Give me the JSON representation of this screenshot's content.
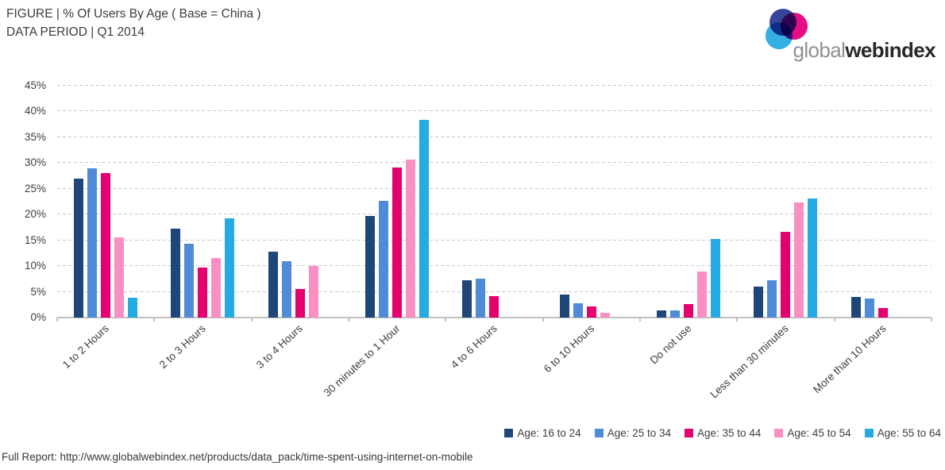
{
  "header": {
    "title_line1": "FIGURE | % Of Users By Age ( Base = China )",
    "title_line2": "DATA PERIOD | Q1 2014"
  },
  "logo": {
    "text_light": "global",
    "text_bold_1": "web",
    "text_bold_2": "index",
    "circle_top_color": "#2b3a94",
    "circle_right_color": "#e6007e",
    "circle_bottom_color": "#29abe2"
  },
  "chart_data": {
    "type": "bar",
    "title": "% Of Users By Age ( Base = China )",
    "data_period": "Q1 2014",
    "categories": [
      "1 to 2 Hours",
      "2 to 3 Hours",
      "3 to 4 Hours",
      "30 minutes to 1 Hour",
      "4 to 6 Hours",
      "6 to 10 Hours",
      "Do not use",
      "Less than 30 minutes",
      "More than 10 Hours"
    ],
    "series": [
      {
        "name": "Age: 16 to 24",
        "color": "#1f4679",
        "values": [
          27.0,
          17.2,
          12.8,
          19.8,
          7.2,
          4.5,
          1.4,
          6.0,
          4.0
        ]
      },
      {
        "name": "Age: 25 to 34",
        "color": "#4f8bd6",
        "values": [
          29.0,
          14.3,
          11.0,
          22.6,
          7.6,
          2.8,
          1.4,
          7.2,
          3.7
        ]
      },
      {
        "name": "Age: 35 to 44",
        "color": "#e4006f",
        "values": [
          28.0,
          9.7,
          5.6,
          29.1,
          4.1,
          2.2,
          2.6,
          16.6,
          1.9
        ]
      },
      {
        "name": "Age: 45 to 54",
        "color": "#f98fc3",
        "values": [
          15.6,
          11.6,
          10.0,
          30.6,
          0,
          0.9,
          9.0,
          22.3,
          0
        ]
      },
      {
        "name": "Age: 55 to 64",
        "color": "#25aae1",
        "values": [
          3.9,
          19.2,
          0,
          38.4,
          0,
          0,
          15.3,
          23.1,
          0
        ]
      }
    ],
    "ylim": [
      0,
      45
    ],
    "ytick_step": 5,
    "ytick_suffix": "%",
    "grid": "horizontal-dashed",
    "legend_position": "bottom-right",
    "xlabel": "",
    "ylabel": ""
  },
  "footer": {
    "text": "Full Report: http://www.globalwebindex.net/products/data_pack/time-spent-using-internet-on-mobile"
  }
}
